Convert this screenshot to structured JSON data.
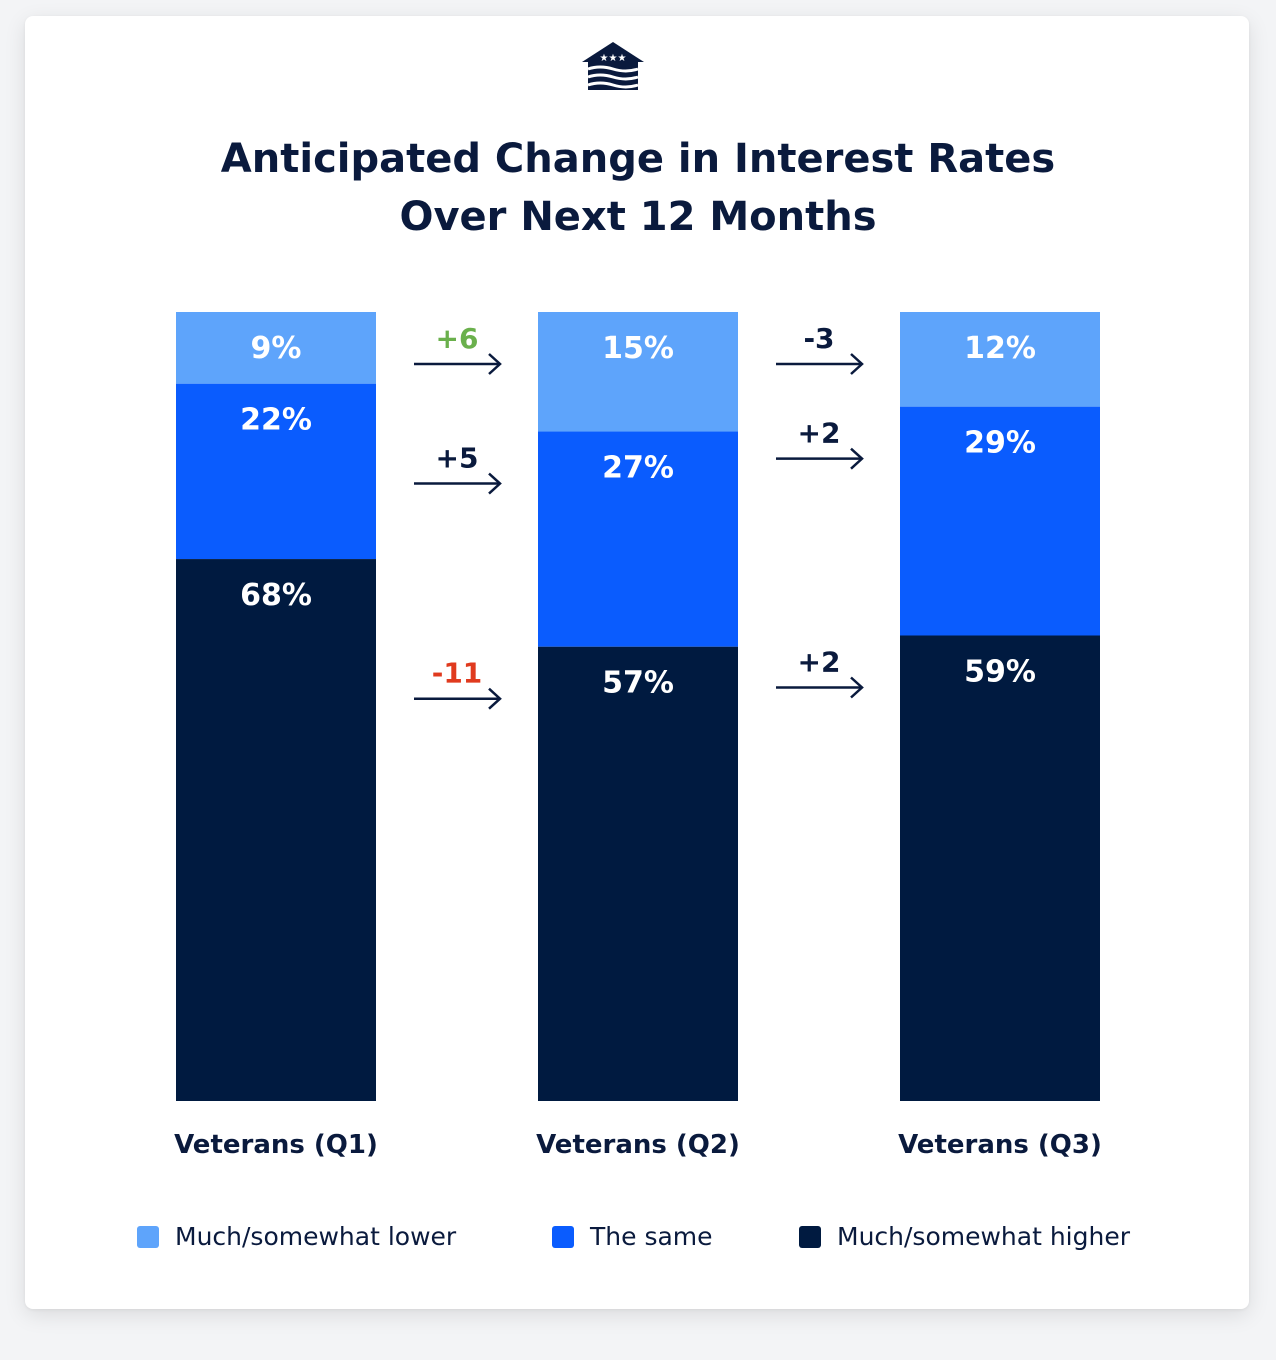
{
  "title_lines": [
    "Anticipated Change in Interest Rates",
    "Over Next 12 Months"
  ],
  "icons": {
    "logo": "house-stars-waves-logo"
  },
  "colors": {
    "lower": "#5ea4fb",
    "same": "#0a5cfe",
    "higher": "#001a40",
    "positive_change": "#6ab04c",
    "negative_change": "#e03a1e",
    "neutral_change": "#0a1a3d"
  },
  "legend": [
    "Much/somewhat lower",
    "The same",
    "Much/somewhat higher"
  ],
  "chart_data": {
    "type": "bar",
    "stacked": true,
    "orientation": "vertical",
    "categories": [
      "Veterans (Q1)",
      "Veterans (Q2)",
      "Veterans (Q3)"
    ],
    "series": [
      {
        "name": "Much/somewhat lower",
        "values": [
          9,
          15,
          12
        ],
        "labels": [
          "9%",
          "15%",
          "12%"
        ]
      },
      {
        "name": "The same",
        "values": [
          22,
          27,
          29
        ],
        "labels": [
          "22%",
          "27%",
          "29%"
        ]
      },
      {
        "name": "Much/somewhat higher",
        "values": [
          68,
          57,
          59
        ],
        "labels": [
          "68%",
          "57%",
          "59%"
        ]
      }
    ],
    "changes": [
      {
        "from": "Veterans (Q1)",
        "to": "Veterans (Q2)",
        "lower": "+6",
        "same": "+5",
        "higher": "-11"
      },
      {
        "from": "Veterans (Q2)",
        "to": "Veterans (Q3)",
        "lower": "-3",
        "same": "+2",
        "higher": "+2"
      }
    ],
    "change_colors": [
      {
        "lower": "positive_change",
        "same": "neutral_change",
        "higher": "negative_change"
      },
      {
        "lower": "neutral_change",
        "same": "neutral_change",
        "higher": "neutral_change"
      }
    ],
    "legend_position": "bottom",
    "grid": false,
    "ylim": [
      0,
      100
    ]
  }
}
